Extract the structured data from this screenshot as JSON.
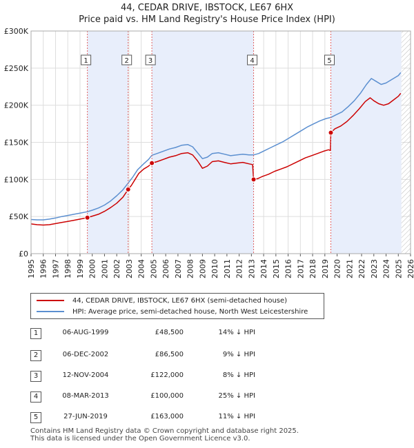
{
  "header": {
    "title_line1": "44, CEDAR DRIVE, IBSTOCK, LE67 6HX",
    "title_line2": "Price paid vs. HM Land Registry's House Price Index (HPI)"
  },
  "chart_data": {
    "type": "line",
    "x_range": [
      1995,
      2026
    ],
    "ylim": [
      0,
      300000
    ],
    "y_ticks": [
      {
        "value": 0,
        "label": "£0"
      },
      {
        "value": 50000,
        "label": "£50K"
      },
      {
        "value": 100000,
        "label": "£100K"
      },
      {
        "value": 150000,
        "label": "£150K"
      },
      {
        "value": 200000,
        "label": "£200K"
      },
      {
        "value": 250000,
        "label": "£250K"
      },
      {
        "value": 300000,
        "label": "£300K"
      }
    ],
    "x_ticks": [
      1995,
      1996,
      1997,
      1998,
      1999,
      2000,
      2001,
      2002,
      2003,
      2004,
      2005,
      2006,
      2007,
      2008,
      2009,
      2010,
      2011,
      2012,
      2013,
      2014,
      2015,
      2016,
      2017,
      2018,
      2019,
      2020,
      2021,
      2022,
      2023,
      2024,
      2025,
      2026
    ],
    "x_tick_labels": [
      "1995",
      "1996",
      "1997",
      "1998",
      "1999",
      "2000",
      "2001",
      "2002",
      "2003",
      "2004",
      "2005",
      "2006",
      "2007",
      "2008",
      "2009",
      "2010",
      "2011",
      "2012",
      "2013",
      "2014",
      "2015",
      "2016",
      "2017",
      "2018",
      "2019",
      "2020",
      "2021",
      "2022",
      "2023",
      "2024",
      "2025",
      "2026"
    ],
    "shaded_spans": [
      [
        1999.6,
        2002.93
      ],
      [
        2004.87,
        2013.18
      ],
      [
        2019.49,
        2025.25
      ]
    ],
    "hatch_from": 2025.25,
    "series": [
      {
        "name": "44, CEDAR DRIVE, IBSTOCK, LE67 6HX (semi-detached house)",
        "color": "#cc0000",
        "points": [
          [
            1995.0,
            40000
          ],
          [
            1995.5,
            39000
          ],
          [
            1996.0,
            38500
          ],
          [
            1996.5,
            39000
          ],
          [
            1997.0,
            40500
          ],
          [
            1997.5,
            42000
          ],
          [
            1998.0,
            43500
          ],
          [
            1998.5,
            45000
          ],
          [
            1999.0,
            46500
          ],
          [
            1999.6,
            48500
          ],
          [
            2000.0,
            50500
          ],
          [
            2000.5,
            53000
          ],
          [
            2001.0,
            57000
          ],
          [
            2001.5,
            62000
          ],
          [
            2002.0,
            68000
          ],
          [
            2002.5,
            76000
          ],
          [
            2002.93,
            86500
          ],
          [
            2003.2,
            92000
          ],
          [
            2003.5,
            100000
          ],
          [
            2003.8,
            108000
          ],
          [
            2004.2,
            114000
          ],
          [
            2004.6,
            118000
          ],
          [
            2004.87,
            122000
          ],
          [
            2005.3,
            124000
          ],
          [
            2005.8,
            127000
          ],
          [
            2006.3,
            130000
          ],
          [
            2006.8,
            132000
          ],
          [
            2007.3,
            135000
          ],
          [
            2007.8,
            136000
          ],
          [
            2008.2,
            133000
          ],
          [
            2008.6,
            125000
          ],
          [
            2009.0,
            115000
          ],
          [
            2009.4,
            118000
          ],
          [
            2009.8,
            124000
          ],
          [
            2010.3,
            125000
          ],
          [
            2010.8,
            123000
          ],
          [
            2011.3,
            121000
          ],
          [
            2011.8,
            122000
          ],
          [
            2012.3,
            123000
          ],
          [
            2012.8,
            121000
          ],
          [
            2013.1,
            120000
          ],
          [
            2013.18,
            100000
          ],
          [
            2013.5,
            101000
          ],
          [
            2013.9,
            104000
          ],
          [
            2014.4,
            107000
          ],
          [
            2014.9,
            111000
          ],
          [
            2015.4,
            114000
          ],
          [
            2015.9,
            117000
          ],
          [
            2016.4,
            121000
          ],
          [
            2016.9,
            125000
          ],
          [
            2017.4,
            129000
          ],
          [
            2017.9,
            132000
          ],
          [
            2018.4,
            135000
          ],
          [
            2018.9,
            138000
          ],
          [
            2019.3,
            140000
          ],
          [
            2019.45,
            139000
          ],
          [
            2019.49,
            163000
          ],
          [
            2019.8,
            168000
          ],
          [
            2020.3,
            172000
          ],
          [
            2020.8,
            178000
          ],
          [
            2021.3,
            186000
          ],
          [
            2021.8,
            195000
          ],
          [
            2022.3,
            205000
          ],
          [
            2022.7,
            210000
          ],
          [
            2023.0,
            206000
          ],
          [
            2023.4,
            202000
          ],
          [
            2023.8,
            200000
          ],
          [
            2024.2,
            202000
          ],
          [
            2024.6,
            207000
          ],
          [
            2025.0,
            212000
          ],
          [
            2025.2,
            216000
          ]
        ]
      },
      {
        "name": "HPI: Average price, semi-detached house, North West Leicestershire",
        "color": "#5b8fd0",
        "points": [
          [
            1995.0,
            46000
          ],
          [
            1995.5,
            45500
          ],
          [
            1996.0,
            45500
          ],
          [
            1996.5,
            46500
          ],
          [
            1997.0,
            48000
          ],
          [
            1997.5,
            50000
          ],
          [
            1998.0,
            51500
          ],
          [
            1998.5,
            53000
          ],
          [
            1999.0,
            54500
          ],
          [
            1999.6,
            56500
          ],
          [
            2000.0,
            58500
          ],
          [
            2000.5,
            61500
          ],
          [
            2001.0,
            65500
          ],
          [
            2001.5,
            71000
          ],
          [
            2002.0,
            78000
          ],
          [
            2002.5,
            86000
          ],
          [
            2002.93,
            95000
          ],
          [
            2003.3,
            103000
          ],
          [
            2003.7,
            113000
          ],
          [
            2004.2,
            121000
          ],
          [
            2004.6,
            127000
          ],
          [
            2004.87,
            132500
          ],
          [
            2005.3,
            135000
          ],
          [
            2005.8,
            138000
          ],
          [
            2006.3,
            141000
          ],
          [
            2006.8,
            143000
          ],
          [
            2007.3,
            146000
          ],
          [
            2007.8,
            147000
          ],
          [
            2008.2,
            144000
          ],
          [
            2008.6,
            136000
          ],
          [
            2009.0,
            128000
          ],
          [
            2009.4,
            130000
          ],
          [
            2009.8,
            135000
          ],
          [
            2010.3,
            136000
          ],
          [
            2010.8,
            134000
          ],
          [
            2011.3,
            132000
          ],
          [
            2011.8,
            133000
          ],
          [
            2012.3,
            134000
          ],
          [
            2012.8,
            133000
          ],
          [
            2013.18,
            133000
          ],
          [
            2013.6,
            135000
          ],
          [
            2014.1,
            139000
          ],
          [
            2014.6,
            143000
          ],
          [
            2015.1,
            147000
          ],
          [
            2015.6,
            151000
          ],
          [
            2016.1,
            156000
          ],
          [
            2016.6,
            161000
          ],
          [
            2017.1,
            166000
          ],
          [
            2017.6,
            171000
          ],
          [
            2018.1,
            175000
          ],
          [
            2018.6,
            179000
          ],
          [
            2019.1,
            182000
          ],
          [
            2019.49,
            183500
          ],
          [
            2019.9,
            187000
          ],
          [
            2020.4,
            191000
          ],
          [
            2020.9,
            198000
          ],
          [
            2021.4,
            206000
          ],
          [
            2021.9,
            216000
          ],
          [
            2022.4,
            228000
          ],
          [
            2022.8,
            236000
          ],
          [
            2023.2,
            232000
          ],
          [
            2023.6,
            228000
          ],
          [
            2024.0,
            230000
          ],
          [
            2024.5,
            235000
          ],
          [
            2025.0,
            240000
          ],
          [
            2025.2,
            244000
          ]
        ]
      }
    ],
    "sale_markers": [
      {
        "num": "1",
        "x": 1999.6,
        "value": 48500
      },
      {
        "num": "2",
        "x": 2002.93,
        "value": 86500
      },
      {
        "num": "3",
        "x": 2004.87,
        "value": 122000
      },
      {
        "num": "4",
        "x": 2013.18,
        "value": 100000
      },
      {
        "num": "5",
        "x": 2019.49,
        "value": 163000
      }
    ]
  },
  "legend": {
    "property_label": "44, CEDAR DRIVE, IBSTOCK, LE67 6HX (semi-detached house)",
    "hpi_label": "HPI: Average price, semi-detached house, North West Leicestershire",
    "property_color": "#cc0000",
    "hpi_color": "#5b8fd0"
  },
  "sales": [
    {
      "num": "1",
      "date": "06-AUG-1999",
      "price": "£48,500",
      "hpi": "14% ↓ HPI"
    },
    {
      "num": "2",
      "date": "06-DEC-2002",
      "price": "£86,500",
      "hpi": "9% ↓ HPI"
    },
    {
      "num": "3",
      "date": "12-NOV-2004",
      "price": "£122,000",
      "hpi": "8% ↓ HPI"
    },
    {
      "num": "4",
      "date": "08-MAR-2013",
      "price": "£100,000",
      "hpi": "25% ↓ HPI"
    },
    {
      "num": "5",
      "date": "27-JUN-2019",
      "price": "£163,000",
      "hpi": "11% ↓ HPI"
    }
  ],
  "footer": {
    "line1": "Contains HM Land Registry data © Crown copyright and database right 2025.",
    "line2": "This data is licensed under the Open Government Licence v3.0."
  }
}
